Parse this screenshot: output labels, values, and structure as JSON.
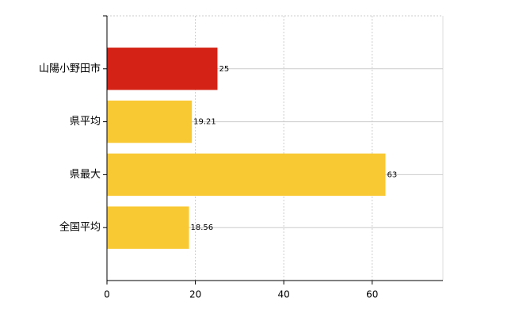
{
  "chart_data": {
    "type": "barh",
    "categories": [
      "山陽小野田市",
      "県平均",
      "県最大",
      "全国平均"
    ],
    "values": [
      25,
      19.21,
      63,
      18.56
    ],
    "colors": [
      "#d42316",
      "#f9c934",
      "#f9c934",
      "#f9c934"
    ],
    "xlim": [
      0,
      76
    ],
    "xticks": [
      0,
      20,
      40,
      60
    ],
    "grid": true
  }
}
